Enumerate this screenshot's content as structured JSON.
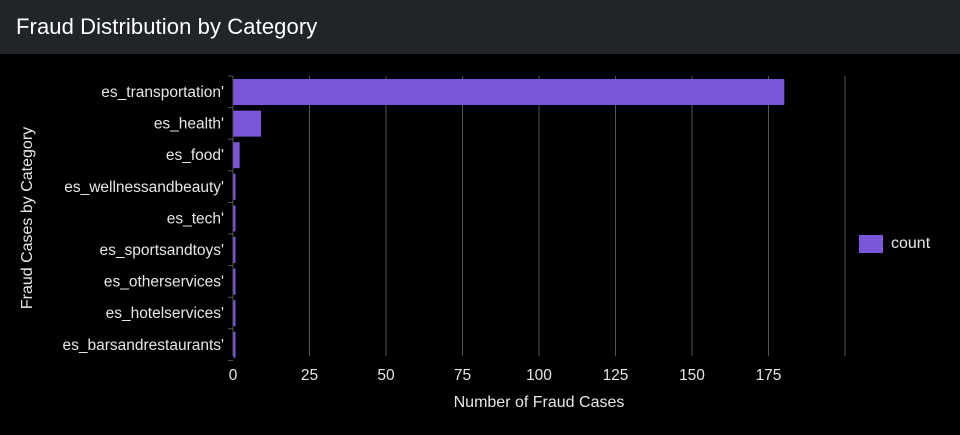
{
  "panel": {
    "title": "Fraud Distribution by Category"
  },
  "colors": {
    "bar": "#7b56db",
    "background": "#000000",
    "header": "#212428",
    "grid": "#555555",
    "text": "#e6e6e6"
  },
  "chart_data": {
    "type": "bar",
    "orientation": "horizontal",
    "categories": [
      "es_transportation'",
      "es_health'",
      "es_food'",
      "es_wellnessandbeauty'",
      "es_tech'",
      "es_sportsandtoys'",
      "es_otherservices'",
      "es_hotelservices'",
      "es_barsandrestaurants'"
    ],
    "series": [
      {
        "name": "count",
        "values": [
          180,
          9,
          2,
          0.5,
          0.5,
          0.5,
          0.5,
          0.5,
          0.5
        ]
      }
    ],
    "xlabel": "Number of Fraud Cases",
    "ylabel": "Fraud Cases by Category",
    "xlim": [
      0,
      200
    ],
    "xticks": [
      0,
      25,
      50,
      75,
      100,
      125,
      150,
      175
    ],
    "grid": true,
    "legend_position": "right"
  }
}
